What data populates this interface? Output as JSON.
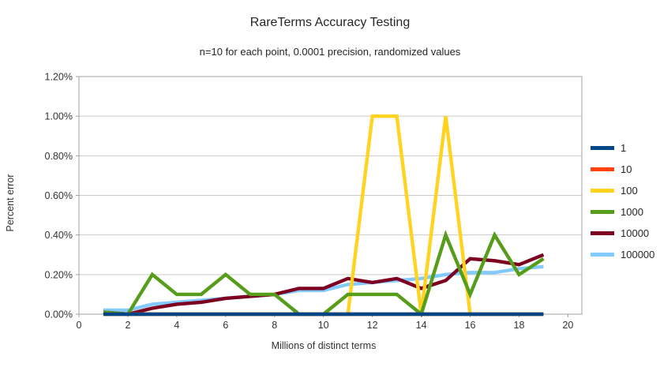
{
  "chart_data": {
    "type": "line",
    "title": "RareTerms Accuracy Testing",
    "subtitle": "n=10 for each point, 0.0001 precision, randomized values",
    "xlabel": "Millions of distinct terms",
    "ylabel": "Percent error",
    "xlim": [
      0,
      20
    ],
    "ylim": [
      0,
      1.2
    ],
    "grid": true,
    "legend_position": "right",
    "yticks": [
      0,
      0.2,
      0.4,
      0.6,
      0.8,
      1.0,
      1.2
    ],
    "ytick_labels": [
      "0.00%",
      "0.20%",
      "0.40%",
      "0.60%",
      "0.80%",
      "1.00%",
      "1.20%"
    ],
    "xticks": [
      0,
      2,
      4,
      6,
      8,
      10,
      12,
      14,
      16,
      18,
      20
    ],
    "xtick_labels": [
      "0",
      "2",
      "4",
      "6",
      "8",
      "10",
      "12",
      "14",
      "16",
      "18",
      "20"
    ],
    "x": [
      1,
      2,
      3,
      4,
      5,
      6,
      7,
      8,
      9,
      10,
      11,
      12,
      13,
      14,
      15,
      16,
      17,
      18,
      19
    ],
    "units": "percent error, values in %",
    "series": [
      {
        "name": "1",
        "color": "#004586",
        "values": [
          0,
          0,
          0,
          0,
          0,
          0,
          0,
          0,
          0,
          0,
          0,
          0,
          0,
          0,
          0,
          0,
          0,
          0,
          0
        ]
      },
      {
        "name": "10",
        "color": "#ff420e",
        "values": [
          0,
          0,
          0,
          0,
          0,
          0,
          0,
          0,
          0,
          0,
          0,
          0,
          0,
          0,
          0,
          0,
          0,
          0,
          0
        ]
      },
      {
        "name": "100",
        "color": "#ffd320",
        "values": [
          0,
          0,
          0,
          0,
          0,
          0,
          0,
          0,
          0,
          0,
          0,
          1.0,
          1.0,
          0,
          1.0,
          0,
          0,
          0,
          0
        ]
      },
      {
        "name": "1000",
        "color": "#579d1c",
        "values": [
          0.01,
          0,
          0.2,
          0.1,
          0.1,
          0.2,
          0.1,
          0.1,
          0,
          0,
          0.1,
          0.1,
          0.1,
          0,
          0.4,
          0.1,
          0.4,
          0.2,
          0.28
        ]
      },
      {
        "name": "10000",
        "color": "#7e0021",
        "values": [
          0.01,
          0,
          0.03,
          0.05,
          0.06,
          0.08,
          0.09,
          0.1,
          0.13,
          0.13,
          0.18,
          0.16,
          0.18,
          0.13,
          0.17,
          0.28,
          0.27,
          0.25,
          0.3
        ]
      },
      {
        "name": "100000",
        "color": "#83caff",
        "values": [
          0.02,
          0.02,
          0.05,
          0.06,
          0.07,
          0.08,
          0.09,
          0.1,
          0.12,
          0.12,
          0.15,
          0.16,
          0.17,
          0.18,
          0.2,
          0.21,
          0.21,
          0.23,
          0.24
        ]
      }
    ],
    "draw_order": [
      5,
      4,
      2,
      3,
      1,
      0
    ]
  }
}
